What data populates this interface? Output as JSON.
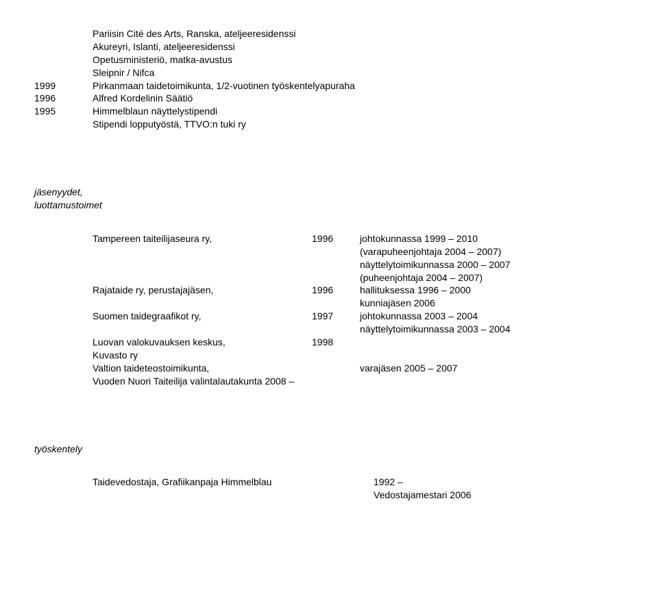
{
  "top_indent": [
    "Pariisin Cité des Arts, Ranska, ateljeeresidenssi",
    "Akureyri, Islanti, ateljeeresidenssi",
    "Opetusministeriö, matka-avustus",
    "Sleipnir / Nifca"
  ],
  "year_rows": [
    {
      "year": "1999",
      "text": "Pirkanmaan taidetoimikunta, 1/2-vuotinen työskentelyapuraha"
    },
    {
      "year": "1996",
      "text": "Alfred Kordelinin Säätiö"
    },
    {
      "year": "1995",
      "text": "Himmelblaun näyttelystipendi"
    }
  ],
  "post_year_indent": "Stipendi lopputyöstä, TTVO:n tuki ry",
  "section1_header_l1": "jäsenyydet,",
  "section1_header_l2": "luottamustoimet",
  "memberships": [
    {
      "c1": "Tampereen taiteilijaseura ry,",
      "c2": "1996",
      "c3": [
        "johtokunnassa 1999 – 2010",
        "(varapuheenjohtaja 2004 – 2007)",
        "näyttelytoimikunnassa 2000 – 2007",
        "(puheenjohtaja 2004 – 2007)"
      ]
    },
    {
      "c1": "Rajataide ry, perustajajäsen,",
      "c2": "1996",
      "c3": [
        "hallituksessa 1996 – 2000",
        "kunniajäsen 2006"
      ]
    },
    {
      "c1": "Suomen taidegraafikot ry,",
      "c2": "1997",
      "c3": [
        " johtokunnassa 2003 – 2004",
        "näyttelytoimikunnassa 2003 – 2004"
      ]
    },
    {
      "c1": "Luovan valokuvauksen keskus,",
      "c2": "1998",
      "c3": []
    },
    {
      "c1": "Kuvasto ry",
      "c2": "",
      "c3": []
    },
    {
      "c1": "Valtion taideteostoimikunta,",
      "c2": "",
      "c3": [
        "varajäsen 2005 – 2007"
      ]
    },
    {
      "c1": "Vuoden Nuori Taiteilija valintalautakunta 2008 –",
      "c2": "",
      "c3": []
    }
  ],
  "section2_header": "työskentely",
  "work": {
    "c1": "Taidevedostaja, Grafiikanpaja Himmelblau",
    "c2_l1": "1992 –",
    "c2_l2": "Vedostajamestari 2006"
  }
}
